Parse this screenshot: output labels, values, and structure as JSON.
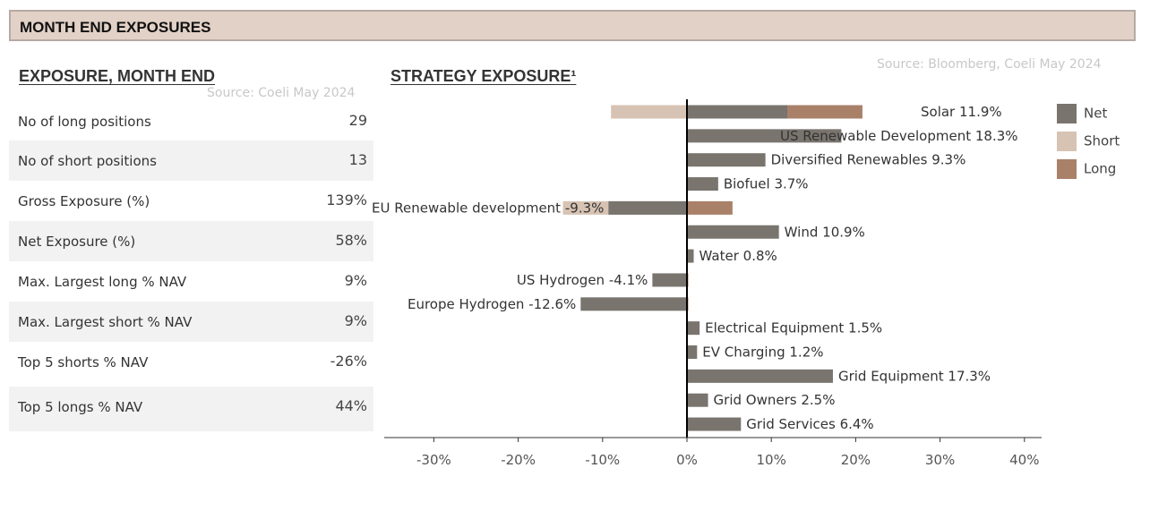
{
  "banner": {
    "title": "MONTH END EXPOSURES"
  },
  "exposure": {
    "title": "EXPOSURE, MONTH END",
    "source": "Source: Coeli May 2024",
    "rows": [
      {
        "label": "No of long positions",
        "value": "29"
      },
      {
        "label": "No of short positions",
        "value": "13"
      },
      {
        "label": "Gross Exposure (%)",
        "value": "139%"
      },
      {
        "label": "Net Exposure (%)",
        "value": "58%"
      },
      {
        "label": "Max. Largest long % NAV",
        "value": "9%"
      },
      {
        "label": "Max. Largest short % NAV",
        "value": "9%"
      },
      {
        "label": "Top 5 shorts % NAV",
        "value": "-26%"
      },
      {
        "label": "Top 5 longs % NAV",
        "value": "44%"
      }
    ]
  },
  "strategy": {
    "title": "STRATEGY EXPOSURE¹",
    "source": "Source: Bloomberg, Coeli May 2024"
  },
  "chart_data": {
    "type": "bar",
    "orientation": "horizontal",
    "xlim": [
      -35,
      42
    ],
    "xticks": [
      "-30%",
      "-20%",
      "-10%",
      "0%",
      "10%",
      "20%",
      "30%",
      "40%"
    ],
    "xtick_values": [
      -30,
      -20,
      -10,
      0,
      10,
      20,
      30,
      40
    ],
    "legend": {
      "placement": "right",
      "entries": [
        "Net",
        "Short",
        "Long"
      ]
    },
    "colors": {
      "Net": "#79746e",
      "Short": "#d7c3b3",
      "Long": "#a98169"
    },
    "categories": [
      "Solar",
      "US Renewable Development",
      "Diversified Renewables",
      "Biofuel",
      "EU Renewable development",
      "Wind",
      "Water",
      "US Hydrogen",
      "Europe Hydrogen",
      "Electrical Equipment",
      "EV Charging",
      "Grid Equipment",
      "Grid Owners",
      "Grid Services"
    ],
    "data_labels": [
      "11.9%",
      "18.3%",
      "9.3%",
      "3.7%",
      "-9.3%",
      "10.9%",
      "0.8%",
      "-4.1%",
      "-12.6%",
      "1.5%",
      "1.2%",
      "17.3%",
      "2.5%",
      "6.4%"
    ],
    "series": [
      {
        "name": "Net",
        "values": [
          11.9,
          18.3,
          9.3,
          3.7,
          -9.3,
          10.9,
          0.8,
          -4.1,
          -12.6,
          1.5,
          1.2,
          17.3,
          2.5,
          6.4
        ]
      },
      {
        "name": "Short",
        "values": [
          -9.0,
          0,
          0,
          0,
          -14.7,
          0,
          0,
          0,
          0,
          0,
          0,
          0,
          0,
          0
        ]
      },
      {
        "name": "Long",
        "values": [
          20.8,
          0,
          0,
          0,
          5.4,
          0,
          0,
          0.1,
          0.1,
          0,
          0,
          0,
          0,
          0
        ]
      }
    ]
  }
}
